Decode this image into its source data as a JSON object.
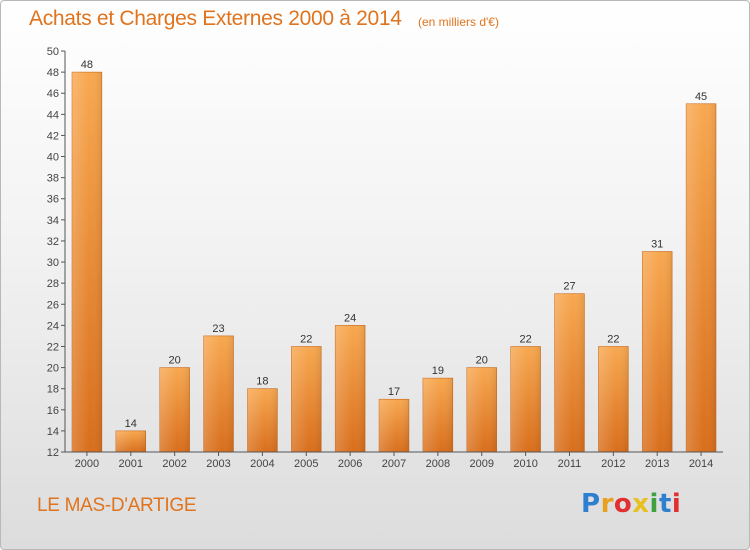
{
  "header": {
    "title": "Achats et Charges Externes 2000 à 2014",
    "subtitle": "(en milliers d'€)"
  },
  "footer": {
    "commune": "LE MAS-D'ARTIGE",
    "brand": {
      "letters": [
        "P",
        "r",
        "o",
        "x",
        "i",
        "t",
        "i"
      ],
      "colors": [
        "#2f7fd1",
        "#e8a020",
        "#e03030",
        "#e8c020",
        "#40a040",
        "#2f7fd1",
        "#e03030"
      ]
    }
  },
  "chart_data": {
    "type": "bar",
    "title": "Achats et Charges Externes 2000 à 2014",
    "subtitle": "(en milliers d'€)",
    "categories": [
      "2000",
      "2001",
      "2002",
      "2003",
      "2004",
      "2005",
      "2006",
      "2007",
      "2008",
      "2009",
      "2010",
      "2011",
      "2012",
      "2013",
      "2014"
    ],
    "values": [
      48,
      14,
      20,
      23,
      18,
      22,
      24,
      17,
      19,
      20,
      22,
      27,
      22,
      31,
      45
    ],
    "ylim": [
      12,
      50
    ],
    "yticks": [
      12,
      14,
      16,
      18,
      20,
      22,
      24,
      26,
      28,
      30,
      32,
      34,
      36,
      38,
      40,
      42,
      44,
      46,
      48,
      50
    ],
    "grid": false,
    "bar_color": "#f0963c",
    "data_labels": true
  }
}
